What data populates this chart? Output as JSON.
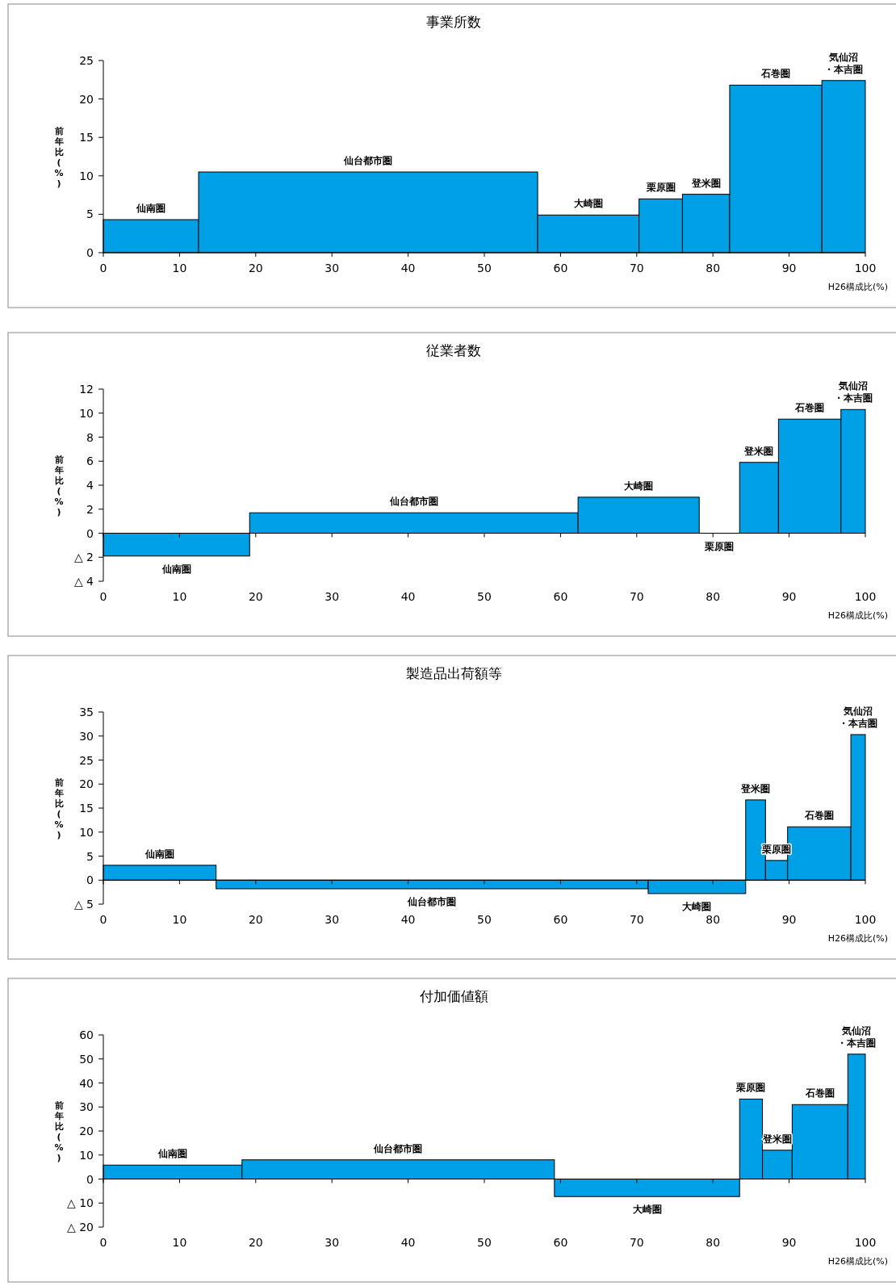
{
  "chart_data": [
    {
      "type": "histogram",
      "title": "事業所数",
      "xlabel": "H26構成比(%)",
      "ylabel": "前年比(%)",
      "color": "#00a0e6",
      "bins": [
        0,
        12.5,
        57,
        70.3,
        76,
        82.2,
        94.3,
        100
      ],
      "values": [
        4.3,
        10.5,
        4.9,
        7.0,
        7.6,
        21.8,
        22.4
      ],
      "xlim": [
        0,
        100
      ],
      "xticks": [
        0,
        10,
        20,
        30,
        40,
        50,
        60,
        70,
        80,
        90,
        100
      ],
      "ylim": [
        0,
        25
      ],
      "yticks": [
        0,
        5,
        10,
        15,
        20,
        25
      ],
      "annotations": [
        {
          "text": "仙南圏",
          "x": 6.25,
          "y": 4.3
        },
        {
          "text": "仙台都市圏",
          "x": 34.75,
          "y": 10.5
        },
        {
          "text": "大崎圏",
          "x": 63.65,
          "y": 4.9
        },
        {
          "text": "栗原圏",
          "x": 73.15,
          "y": 7.0
        },
        {
          "text": "登米圏",
          "x": 79.1,
          "y": 7.6
        },
        {
          "text": "石巻圏",
          "x": 88.25,
          "y": 21.8
        },
        {
          "text": "気仙沼・本吉圏",
          "x": 97.15,
          "y": 22.4
        }
      ]
    },
    {
      "type": "histogram",
      "title": "従業者数",
      "xlabel": "H26構成比(%)",
      "ylabel": "前年比(%)",
      "color": "#00a0e6",
      "bins": [
        0,
        19.2,
        62.3,
        78.2,
        83.5,
        88.6,
        96.8,
        100
      ],
      "values": [
        -1.9,
        1.7,
        3.0,
        0,
        5.9,
        9.5,
        10.3
      ],
      "xlim": [
        0,
        100
      ],
      "xticks": [
        0,
        10,
        20,
        30,
        40,
        50,
        60,
        70,
        80,
        90,
        100
      ],
      "ylim": [
        -4,
        12
      ],
      "yticks": [
        {
          "value": -4,
          "label": "△ 4"
        },
        {
          "value": -2,
          "label": "△ 2"
        },
        0,
        2,
        4,
        6,
        8,
        10,
        12
      ],
      "annotations": [
        {
          "text": "仙南圏",
          "x": 9.6,
          "y": -1.9
        },
        {
          "text": "仙台都市圏",
          "x": 40.75,
          "y": 1.7
        },
        {
          "text": "大崎圏",
          "x": 70.25,
          "y": 3.0
        },
        {
          "text": "栗原圏",
          "x": 80.85,
          "y": 0
        },
        {
          "text": "登米圏",
          "x": 86.05,
          "y": 5.9
        },
        {
          "text": "石巻圏",
          "x": 92.7,
          "y": 9.5
        },
        {
          "text": "気仙沼・本吉圏",
          "x": 98.4,
          "y": 10.3
        }
      ]
    },
    {
      "type": "histogram",
      "title": "製造品出荷額等",
      "xlabel": "H26構成比(%)",
      "ylabel": "前年比(%)",
      "color": "#00a0e6",
      "bins": [
        0,
        14.8,
        71.5,
        84.3,
        86.9,
        89.8,
        98.1,
        100
      ],
      "values": [
        3.1,
        -1.8,
        -2.8,
        16.7,
        4.1,
        11.1,
        30.3
      ],
      "xlim": [
        0,
        100
      ],
      "xticks": [
        0,
        10,
        20,
        30,
        40,
        50,
        60,
        70,
        80,
        90,
        100
      ],
      "ylim": [
        -5,
        35
      ],
      "yticks": [
        {
          "value": -5,
          "label": "△ 5"
        },
        0,
        5,
        10,
        15,
        20,
        25,
        30,
        35
      ],
      "annotations": [
        {
          "text": "仙南圏",
          "x": 7.4,
          "y": 3.1
        },
        {
          "text": "仙台都市圏",
          "x": 43.15,
          "y": -1.8
        },
        {
          "text": "大崎圏",
          "x": 77.9,
          "y": -2.8
        },
        {
          "text": "登米圏",
          "x": 85.6,
          "y": 16.7
        },
        {
          "text": "栗原圏",
          "x": 88.35,
          "y": 4.1
        },
        {
          "text": "石巻圏",
          "x": 93.95,
          "y": 11.1
        },
        {
          "text": "気仙沼・本吉圏",
          "x": 99.05,
          "y": 30.3
        }
      ]
    },
    {
      "type": "histogram",
      "title": "付加価値額",
      "xlabel": "H26構成比(%)",
      "ylabel": "前年比(%)",
      "color": "#00a0e6",
      "bins": [
        0,
        18.2,
        59.2,
        83.5,
        86.5,
        90.4,
        97.7,
        100
      ],
      "values": [
        5.8,
        8.0,
        -7.3,
        33.3,
        12.0,
        31.0,
        52.0
      ],
      "xlim": [
        0,
        100
      ],
      "xticks": [
        0,
        10,
        20,
        30,
        40,
        50,
        60,
        70,
        80,
        90,
        100
      ],
      "ylim": [
        -20,
        60
      ],
      "yticks": [
        {
          "value": -20,
          "label": "△ 20"
        },
        {
          "value": -10,
          "label": "△ 10"
        },
        0,
        10,
        20,
        30,
        40,
        50,
        60
      ],
      "annotations": [
        {
          "text": "仙南圏",
          "x": 9.1,
          "y": 5.8
        },
        {
          "text": "仙台都市圏",
          "x": 38.7,
          "y": 8.0
        },
        {
          "text": "大崎圏",
          "x": 71.35,
          "y": -7.3
        },
        {
          "text": "栗原圏",
          "x": 85.0,
          "y": 33.3
        },
        {
          "text": "登米圏",
          "x": 88.45,
          "y": 12.0
        },
        {
          "text": "石巻圏",
          "x": 94.05,
          "y": 31.0
        },
        {
          "text": "気仙沼・本吉圏",
          "x": 98.85,
          "y": 52.0
        }
      ]
    }
  ]
}
